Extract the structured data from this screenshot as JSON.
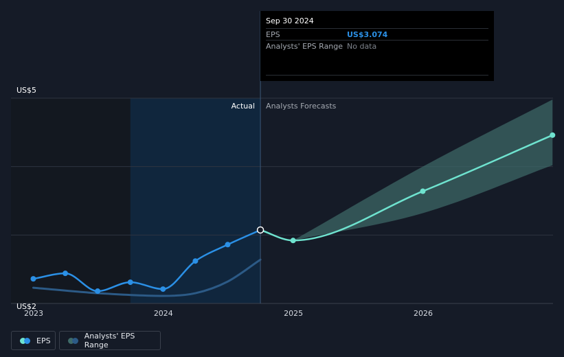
{
  "colors": {
    "background": "#151b27",
    "eps_actual": "#2b90e6",
    "eps_forecast": "#6fe3cf",
    "range_band": "#3f6b69",
    "range_line_past": "#2c5a86",
    "highlight_band": "#0f2b46",
    "gridline": "#2e3440"
  },
  "tooltip": {
    "date": "Sep 30 2024",
    "eps_label": "EPS",
    "eps_value": "US$3.074",
    "range_label": "Analysts' EPS Range",
    "range_value": "No data"
  },
  "section_labels": {
    "actual": "Actual",
    "forecast": "Analysts Forecasts"
  },
  "legend": {
    "eps": "EPS",
    "range": "Analysts' EPS Range"
  },
  "chart_data": {
    "type": "line",
    "y_tick_labels": [
      {
        "value": 5,
        "label": "US$5"
      },
      {
        "value": 2,
        "label": "US$2"
      }
    ],
    "ylim": [
      2,
      5
    ],
    "x_ticks": [
      {
        "label": "2023",
        "x": "2023-01-01"
      },
      {
        "label": "2024",
        "x": "2024-01-01"
      },
      {
        "label": "2025",
        "x": "2025-01-01"
      },
      {
        "label": "2026",
        "x": "2026-01-01"
      }
    ],
    "xlim": [
      "2022-12-20",
      "2026-12-31"
    ],
    "highlight_range": [
      "2023-09-30",
      "2024-09-30"
    ],
    "divider_date": "2024-09-30",
    "series": [
      {
        "name": "EPS",
        "kind": "actual",
        "points": [
          {
            "x": "2022-12-31",
            "y": 2.36
          },
          {
            "x": "2023-03-31",
            "y": 2.44
          },
          {
            "x": "2023-06-30",
            "y": 2.18
          },
          {
            "x": "2023-09-30",
            "y": 2.31
          },
          {
            "x": "2023-12-31",
            "y": 2.21
          },
          {
            "x": "2024-03-31",
            "y": 2.62
          },
          {
            "x": "2024-06-30",
            "y": 2.86
          },
          {
            "x": "2024-09-30",
            "y": 3.074
          }
        ]
      },
      {
        "name": "EPS",
        "kind": "forecast",
        "points": [
          {
            "x": "2024-09-30",
            "y": 3.074
          },
          {
            "x": "2024-12-31",
            "y": 2.92
          },
          {
            "x": "2025-12-31",
            "y": 3.64
          },
          {
            "x": "2026-12-31",
            "y": 4.46
          }
        ]
      }
    ],
    "range_past": [
      {
        "x": "2022-12-31",
        "y": 2.23
      },
      {
        "x": "2023-06-30",
        "y": 2.15
      },
      {
        "x": "2023-12-31",
        "y": 2.11
      },
      {
        "x": "2024-03-31",
        "y": 2.15
      },
      {
        "x": "2024-06-30",
        "y": 2.32
      },
      {
        "x": "2024-09-30",
        "y": 2.64
      }
    ],
    "range_forecast": {
      "high": [
        {
          "x": "2024-12-31",
          "y": 2.92
        },
        {
          "x": "2025-12-31",
          "y": 4.0
        },
        {
          "x": "2026-12-31",
          "y": 4.98
        }
      ],
      "low": [
        {
          "x": "2024-12-31",
          "y": 2.92
        },
        {
          "x": "2025-12-31",
          "y": 3.32
        },
        {
          "x": "2026-12-31",
          "y": 4.02
        }
      ]
    }
  }
}
